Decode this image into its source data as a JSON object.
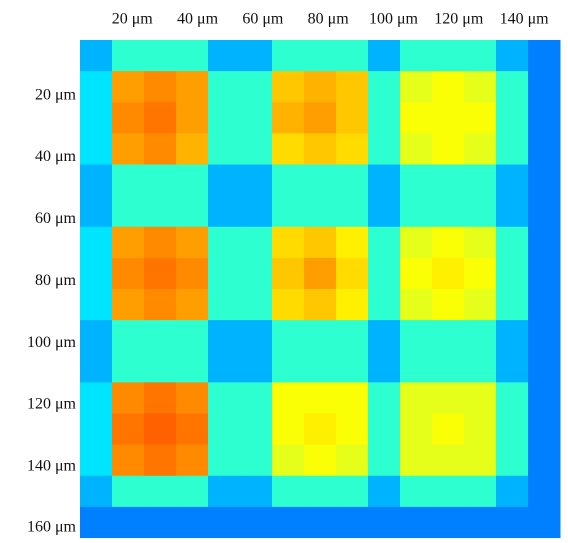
{
  "chart_data": {
    "type": "heatmap",
    "colormap": "jet",
    "xlim": [
      4,
      151
    ],
    "ylim": [
      2,
      163
    ],
    "xticks": [
      {
        "value": 20,
        "label": "20 μm"
      },
      {
        "value": 40,
        "label": "40 μm"
      },
      {
        "value": 60,
        "label": "60 μm"
      },
      {
        "value": 80,
        "label": "80 μm"
      },
      {
        "value": 100,
        "label": "100 μm"
      },
      {
        "value": 120,
        "label": "120 μm"
      },
      {
        "value": 140,
        "label": "140 μm"
      }
    ],
    "yticks": [
      {
        "value": 20,
        "label": "20 μm"
      },
      {
        "value": 40,
        "label": "40 μm"
      },
      {
        "value": 60,
        "label": "60 μm"
      },
      {
        "value": 80,
        "label": "80 μm"
      },
      {
        "value": 100,
        "label": "100 μm"
      },
      {
        "value": 120,
        "label": "120 μm"
      },
      {
        "value": 140,
        "label": "140 μm"
      },
      {
        "value": 160,
        "label": "160 μm"
      }
    ],
    "z": [
      [
        0.3,
        0.42,
        0.42,
        0.42,
        0.3,
        0.3,
        0.42,
        0.42,
        0.42,
        0.3,
        0.42,
        0.42,
        0.42,
        0.3,
        0.25
      ],
      [
        0.35,
        0.72,
        0.74,
        0.72,
        0.42,
        0.42,
        0.68,
        0.7,
        0.68,
        0.42,
        0.6,
        0.62,
        0.6,
        0.42,
        0.25
      ],
      [
        0.35,
        0.74,
        0.76,
        0.72,
        0.42,
        0.42,
        0.7,
        0.72,
        0.68,
        0.42,
        0.62,
        0.62,
        0.62,
        0.42,
        0.25
      ],
      [
        0.35,
        0.72,
        0.74,
        0.7,
        0.42,
        0.42,
        0.66,
        0.68,
        0.66,
        0.42,
        0.6,
        0.62,
        0.6,
        0.42,
        0.25
      ],
      [
        0.3,
        0.42,
        0.42,
        0.42,
        0.3,
        0.3,
        0.42,
        0.42,
        0.42,
        0.3,
        0.42,
        0.42,
        0.42,
        0.3,
        0.25
      ],
      [
        0.3,
        0.42,
        0.42,
        0.42,
        0.3,
        0.3,
        0.42,
        0.42,
        0.42,
        0.3,
        0.42,
        0.42,
        0.42,
        0.3,
        0.25
      ],
      [
        0.35,
        0.72,
        0.74,
        0.72,
        0.42,
        0.42,
        0.66,
        0.68,
        0.64,
        0.42,
        0.6,
        0.62,
        0.6,
        0.42,
        0.25
      ],
      [
        0.35,
        0.74,
        0.76,
        0.74,
        0.42,
        0.42,
        0.68,
        0.72,
        0.66,
        0.42,
        0.62,
        0.64,
        0.62,
        0.42,
        0.25
      ],
      [
        0.35,
        0.72,
        0.74,
        0.72,
        0.42,
        0.42,
        0.66,
        0.68,
        0.64,
        0.42,
        0.6,
        0.62,
        0.6,
        0.42,
        0.25
      ],
      [
        0.3,
        0.42,
        0.42,
        0.42,
        0.3,
        0.3,
        0.42,
        0.42,
        0.42,
        0.3,
        0.42,
        0.42,
        0.42,
        0.3,
        0.25
      ],
      [
        0.3,
        0.42,
        0.42,
        0.42,
        0.3,
        0.3,
        0.42,
        0.42,
        0.42,
        0.3,
        0.42,
        0.42,
        0.42,
        0.3,
        0.25
      ],
      [
        0.35,
        0.74,
        0.76,
        0.74,
        0.42,
        0.42,
        0.62,
        0.62,
        0.62,
        0.42,
        0.6,
        0.6,
        0.6,
        0.42,
        0.25
      ],
      [
        0.35,
        0.76,
        0.78,
        0.76,
        0.42,
        0.42,
        0.62,
        0.64,
        0.62,
        0.42,
        0.6,
        0.62,
        0.6,
        0.42,
        0.25
      ],
      [
        0.35,
        0.74,
        0.76,
        0.74,
        0.42,
        0.42,
        0.6,
        0.62,
        0.6,
        0.42,
        0.6,
        0.6,
        0.6,
        0.42,
        0.25
      ],
      [
        0.3,
        0.42,
        0.42,
        0.42,
        0.3,
        0.3,
        0.42,
        0.42,
        0.42,
        0.3,
        0.42,
        0.42,
        0.42,
        0.3,
        0.25
      ],
      [
        0.25,
        0.25,
        0.25,
        0.25,
        0.25,
        0.25,
        0.25,
        0.25,
        0.25,
        0.25,
        0.25,
        0.25,
        0.25,
        0.25,
        0.25
      ]
    ]
  }
}
